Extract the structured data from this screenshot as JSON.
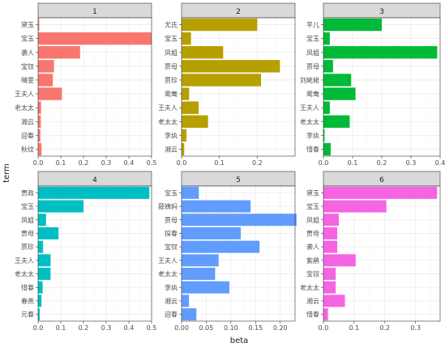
{
  "chart_data": {
    "type": "bar",
    "orientation": "horizontal",
    "xlabel": "beta",
    "ylabel": "term",
    "grid": true,
    "legend": "none",
    "panels": [
      {
        "label": "1",
        "color": "#F8766D",
        "xlim": [
          0,
          0.5
        ],
        "xticks": [
          "0.0",
          "0.1",
          "0.2",
          "0.3",
          "0.4",
          "0.5"
        ],
        "xtick_values": [
          0,
          0.1,
          0.2,
          0.3,
          0.4,
          0.5
        ],
        "categories": [
          "黛玉",
          "宝玉",
          "袭人",
          "宝钗",
          "晴雯",
          "王夫人",
          "老太太",
          "湘云",
          "迎春",
          "秋纹"
        ],
        "values": [
          0.005,
          0.5,
          0.185,
          0.07,
          0.065,
          0.105,
          0.013,
          0.012,
          0.01,
          0.015
        ]
      },
      {
        "label": "2",
        "color": "#B79F00",
        "xlim": [
          0,
          0.3
        ],
        "xticks": [
          "0.0",
          "0.1",
          "0.2"
        ],
        "xtick_values": [
          0,
          0.1,
          0.2
        ],
        "categories": [
          "尤氏",
          "宝玉",
          "凤姐",
          "贾母",
          "贾珍",
          "鸳鸯",
          "王夫人",
          "老太太",
          "李纨",
          "湘云"
        ],
        "values": [
          0.2,
          0.025,
          0.11,
          0.26,
          0.21,
          0.02,
          0.045,
          0.07,
          0.013,
          0.007
        ]
      },
      {
        "label": "3",
        "color": "#00BA38",
        "xlim": [
          0,
          0.4
        ],
        "xticks": [
          "0.0",
          "0.1",
          "0.2",
          "0.3",
          "0.4"
        ],
        "xtick_values": [
          0,
          0.1,
          0.2,
          0.3,
          0.4
        ],
        "categories": [
          "平儿",
          "宝玉",
          "凤姐",
          "贾母",
          "刘姥姥",
          "鸳鸯",
          "王夫人",
          "老太太",
          "李纨",
          "惜春"
        ],
        "values": [
          0.2,
          0.022,
          0.39,
          0.033,
          0.095,
          0.11,
          0.022,
          0.09,
          0.004,
          0.025
        ]
      },
      {
        "label": "4",
        "color": "#00BFC4",
        "xlim": [
          0,
          0.5
        ],
        "xticks": [
          "0.0",
          "0.1",
          "0.2",
          "0.3",
          "0.4",
          "0.5"
        ],
        "xtick_values": [
          0,
          0.1,
          0.2,
          0.3,
          0.4,
          0.5
        ],
        "categories": [
          "贾政",
          "宝玉",
          "凤姐",
          "贾母",
          "贾珍",
          "王夫人",
          "老太太",
          "惜春",
          "春燕",
          "元春"
        ],
        "values": [
          0.49,
          0.2,
          0.035,
          0.09,
          0.022,
          0.055,
          0.055,
          0.02,
          0.015,
          0.007
        ]
      },
      {
        "label": "5",
        "color": "#619CFF",
        "xlim": [
          0,
          0.23
        ],
        "xticks": [
          "0.00",
          "0.05",
          "0.10",
          "0.15",
          "0.20"
        ],
        "xtick_values": [
          0,
          0.05,
          0.1,
          0.15,
          0.2
        ],
        "categories": [
          "宝玉",
          "薛姨妈",
          "贾母",
          "探春",
          "宝钗",
          "王夫人",
          "老太太",
          "李纨",
          "湘云",
          "迎春"
        ],
        "values": [
          0.035,
          0.14,
          0.233,
          0.12,
          0.158,
          0.075,
          0.068,
          0.097,
          0.015,
          0.03
        ]
      },
      {
        "label": "6",
        "color": "#F564E3",
        "xlim": [
          0,
          0.38
        ],
        "xticks": [
          "0.0",
          "0.1",
          "0.2",
          "0.3"
        ],
        "xtick_values": [
          0,
          0.1,
          0.2,
          0.3
        ],
        "categories": [
          "黛玉",
          "宝玉",
          "凤姐",
          "贾母",
          "袭人",
          "紫鹃",
          "宝钗",
          "老太太",
          "湘云",
          "惜春"
        ],
        "values": [
          0.37,
          0.205,
          0.05,
          0.045,
          0.045,
          0.105,
          0.04,
          0.04,
          0.07,
          0.015
        ]
      }
    ]
  }
}
